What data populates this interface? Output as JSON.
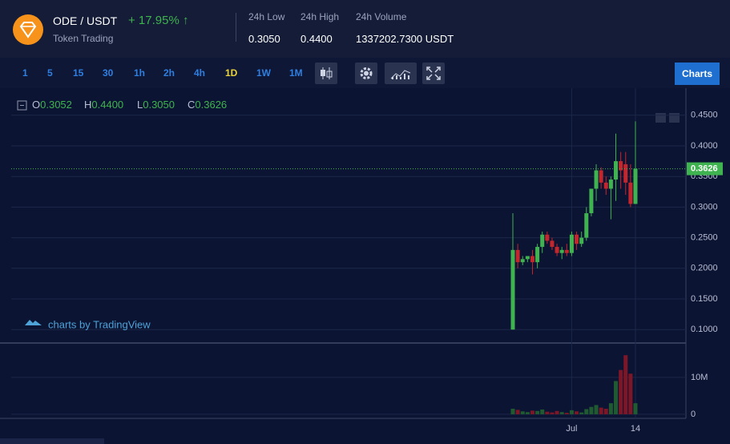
{
  "header": {
    "pair": "ODE / USDT",
    "change": "+ 17.95%",
    "change_arrow": "↑",
    "subtitle": "Token Trading",
    "stats": [
      {
        "label": "24h Low",
        "value": "0.3050"
      },
      {
        "label": "24h High",
        "value": "0.4400"
      },
      {
        "label": "24h Volume",
        "value": "1337202.7300 USDT"
      }
    ]
  },
  "toolbar": {
    "intervals": [
      "1",
      "5",
      "15",
      "30",
      "1h",
      "2h",
      "4h",
      "1D",
      "1W",
      "1M"
    ],
    "active_interval": 7,
    "button": "Charts"
  },
  "watermark": "charts by TradingView",
  "chart_data": {
    "type": "candlestick",
    "legend": [
      {
        "key": "O",
        "value": "0.3052"
      },
      {
        "key": "H",
        "value": "0.4400"
      },
      {
        "key": "L",
        "value": "0.3050"
      },
      {
        "key": "C",
        "value": "0.3626"
      }
    ],
    "categories": [
      null,
      null,
      null,
      null,
      null,
      null,
      null,
      null,
      null,
      null,
      null,
      null,
      "Jul",
      null,
      null,
      null,
      null,
      null,
      null,
      null,
      null,
      null,
      null,
      null,
      null,
      "14"
    ],
    "open": [
      0.1,
      0.23,
      0.21,
      0.215,
      0.22,
      0.21,
      0.235,
      0.255,
      0.245,
      0.235,
      0.225,
      0.23,
      0.225,
      0.255,
      0.24,
      0.25,
      0.29,
      0.33,
      0.36,
      0.34,
      0.33,
      0.345,
      0.375,
      0.37,
      0.34,
      0.3052
    ],
    "high": [
      0.29,
      0.24,
      0.22,
      0.22,
      0.23,
      0.24,
      0.26,
      0.26,
      0.25,
      0.24,
      0.235,
      0.24,
      0.26,
      0.26,
      0.26,
      0.3,
      0.33,
      0.37,
      0.365,
      0.35,
      0.35,
      0.42,
      0.39,
      0.39,
      0.37,
      0.44
    ],
    "low": [
      0.1,
      0.2,
      0.205,
      0.21,
      0.19,
      0.2,
      0.225,
      0.24,
      0.23,
      0.22,
      0.215,
      0.22,
      0.22,
      0.23,
      0.235,
      0.245,
      0.285,
      0.31,
      0.33,
      0.32,
      0.28,
      0.31,
      0.33,
      0.32,
      0.3,
      0.305
    ],
    "close": [
      0.23,
      0.21,
      0.215,
      0.22,
      0.21,
      0.235,
      0.255,
      0.245,
      0.235,
      0.225,
      0.23,
      0.225,
      0.255,
      0.24,
      0.25,
      0.29,
      0.33,
      0.36,
      0.34,
      0.33,
      0.345,
      0.375,
      0.36,
      0.34,
      0.3052,
      0.3626
    ],
    "volume": [
      1.5,
      1.2,
      0.8,
      0.6,
      1.0,
      0.9,
      1.3,
      0.7,
      0.5,
      0.9,
      0.6,
      0.4,
      1.1,
      0.8,
      0.5,
      1.4,
      2.0,
      2.5,
      1.8,
      1.5,
      3.0,
      9.0,
      12,
      16,
      11,
      3
    ],
    "ylim": [
      0.078,
      0.489
    ],
    "yticks": [
      {
        "value": 0.1,
        "label": "0.1000"
      },
      {
        "value": 0.15,
        "label": "0.1500"
      },
      {
        "value": 0.2,
        "label": "0.2000"
      },
      {
        "value": 0.25,
        "label": "0.2500"
      },
      {
        "value": 0.3,
        "label": "0.3000"
      },
      {
        "value": 0.35,
        "label": "0.3500"
      },
      {
        "value": 0.4,
        "label": "0.4000"
      },
      {
        "value": 0.45,
        "label": "0.4500"
      }
    ],
    "volume_lim": [
      -1.1,
      19.3
    ],
    "volume_ticks": [
      0,
      {
        "value": 10,
        "label": "10M"
      }
    ],
    "last_price": 0.3626,
    "up_color": "#3fb34f",
    "down_color": "#c4262e",
    "volume_up_color": "#1f5a31",
    "volume_down_color": "#7d1626",
    "grid": true
  }
}
